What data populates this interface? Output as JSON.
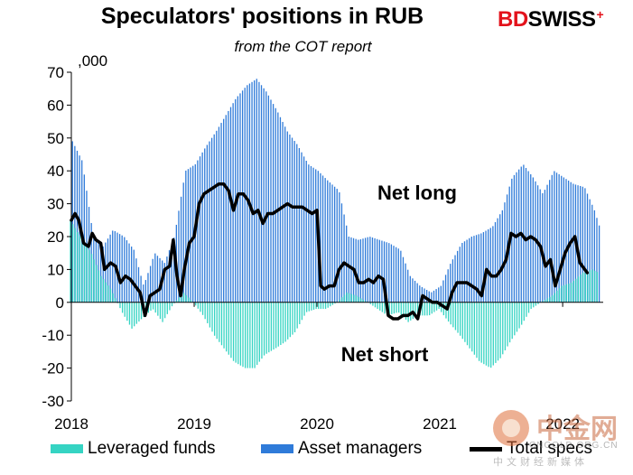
{
  "header": {
    "title": "Speculators' positions in RUB",
    "subtitle": "from the COT report",
    "brand_part1": "BD",
    "brand_part2": "SWISS",
    "unit": ",000"
  },
  "watermark": {
    "cn_name": "中金网",
    "url": "CNGOLD.ORG.CN",
    "sub": "中文财经新媒体"
  },
  "colors": {
    "leveraged_funds": "#35d4c3",
    "asset_managers": "#2f7bd9",
    "total_specs": "#000000",
    "brand_red": "#e3121b"
  },
  "chart_data": {
    "type": "bar",
    "title": "Speculators' positions in RUB",
    "subtitle": "from the COT report",
    "ylabel": ",000",
    "ylim": [
      -30,
      70
    ],
    "yticks": [
      70,
      60,
      50,
      40,
      30,
      20,
      10,
      0,
      -10,
      -20,
      -30
    ],
    "x_tick_labels": [
      "2018",
      "2019",
      "2020",
      "2021",
      "2022"
    ],
    "x_range": [
      2018.0,
      2022.33
    ],
    "grid": false,
    "legend_position": "bottom",
    "annotations": [
      "Net long",
      "Net short"
    ],
    "series": [
      {
        "name": "Leveraged funds",
        "type": "bar",
        "points": [
          [
            2018.0,
            25
          ],
          [
            2018.08,
            20
          ],
          [
            2018.17,
            15
          ],
          [
            2018.25,
            8
          ],
          [
            2018.33,
            4
          ],
          [
            2018.42,
            -3
          ],
          [
            2018.5,
            -8
          ],
          [
            2018.58,
            -5
          ],
          [
            2018.67,
            -2
          ],
          [
            2018.75,
            -6
          ],
          [
            2018.83,
            -1
          ],
          [
            2018.92,
            3
          ],
          [
            2019.0,
            0
          ],
          [
            2019.08,
            -4
          ],
          [
            2019.17,
            -10
          ],
          [
            2019.25,
            -14
          ],
          [
            2019.33,
            -18
          ],
          [
            2019.42,
            -20
          ],
          [
            2019.5,
            -20
          ],
          [
            2019.58,
            -16
          ],
          [
            2019.67,
            -14
          ],
          [
            2019.75,
            -12
          ],
          [
            2019.83,
            -9
          ],
          [
            2019.92,
            -3
          ],
          [
            2020.0,
            -2
          ],
          [
            2020.08,
            -2
          ],
          [
            2020.17,
            0
          ],
          [
            2020.25,
            3
          ],
          [
            2020.33,
            2
          ],
          [
            2020.42,
            0
          ],
          [
            2020.5,
            -2
          ],
          [
            2020.58,
            -4
          ],
          [
            2020.67,
            -3
          ],
          [
            2020.75,
            -6
          ],
          [
            2020.83,
            -4
          ],
          [
            2020.92,
            -4
          ],
          [
            2021.0,
            -2
          ],
          [
            2021.08,
            -6
          ],
          [
            2021.17,
            -10
          ],
          [
            2021.25,
            -14
          ],
          [
            2021.33,
            -18
          ],
          [
            2021.42,
            -20
          ],
          [
            2021.5,
            -17
          ],
          [
            2021.58,
            -12
          ],
          [
            2021.67,
            -7
          ],
          [
            2021.75,
            -2
          ],
          [
            2021.83,
            0
          ],
          [
            2021.92,
            2
          ],
          [
            2022.0,
            5
          ],
          [
            2022.08,
            6
          ],
          [
            2022.17,
            9
          ],
          [
            2022.25,
            10
          ],
          [
            2022.3,
            9
          ]
        ]
      },
      {
        "name": "Asset managers",
        "type": "bar",
        "points": [
          [
            2018.0,
            49
          ],
          [
            2018.08,
            43
          ],
          [
            2018.17,
            20
          ],
          [
            2018.25,
            17
          ],
          [
            2018.33,
            22
          ],
          [
            2018.42,
            20
          ],
          [
            2018.5,
            16
          ],
          [
            2018.58,
            5
          ],
          [
            2018.67,
            15
          ],
          [
            2018.75,
            12
          ],
          [
            2018.83,
            20
          ],
          [
            2018.92,
            40
          ],
          [
            2019.0,
            42
          ],
          [
            2019.08,
            47
          ],
          [
            2019.17,
            52
          ],
          [
            2019.25,
            57
          ],
          [
            2019.33,
            62
          ],
          [
            2019.42,
            66
          ],
          [
            2019.5,
            68
          ],
          [
            2019.58,
            64
          ],
          [
            2019.67,
            58
          ],
          [
            2019.75,
            52
          ],
          [
            2019.83,
            48
          ],
          [
            2019.92,
            42
          ],
          [
            2020.0,
            40
          ],
          [
            2020.08,
            37
          ],
          [
            2020.17,
            34
          ],
          [
            2020.25,
            20
          ],
          [
            2020.33,
            19
          ],
          [
            2020.42,
            20
          ],
          [
            2020.5,
            19
          ],
          [
            2020.58,
            18
          ],
          [
            2020.67,
            16
          ],
          [
            2020.75,
            8
          ],
          [
            2020.83,
            5
          ],
          [
            2020.92,
            3
          ],
          [
            2021.0,
            5
          ],
          [
            2021.08,
            12
          ],
          [
            2021.17,
            18
          ],
          [
            2021.25,
            20
          ],
          [
            2021.33,
            21
          ],
          [
            2021.42,
            23
          ],
          [
            2021.5,
            28
          ],
          [
            2021.58,
            38
          ],
          [
            2021.67,
            42
          ],
          [
            2021.75,
            38
          ],
          [
            2021.83,
            33
          ],
          [
            2021.92,
            40
          ],
          [
            2022.0,
            38
          ],
          [
            2022.08,
            36
          ],
          [
            2022.17,
            35
          ],
          [
            2022.25,
            28
          ],
          [
            2022.3,
            22
          ]
        ]
      },
      {
        "name": "Total specs",
        "type": "line",
        "points": [
          [
            2018.0,
            25
          ],
          [
            2018.03,
            27
          ],
          [
            2018.06,
            25
          ],
          [
            2018.1,
            18
          ],
          [
            2018.14,
            17
          ],
          [
            2018.17,
            21
          ],
          [
            2018.2,
            19
          ],
          [
            2018.24,
            18
          ],
          [
            2018.27,
            10
          ],
          [
            2018.32,
            12
          ],
          [
            2018.36,
            11
          ],
          [
            2018.4,
            6
          ],
          [
            2018.44,
            8
          ],
          [
            2018.48,
            7
          ],
          [
            2018.52,
            5
          ],
          [
            2018.56,
            3
          ],
          [
            2018.6,
            -4
          ],
          [
            2018.64,
            2
          ],
          [
            2018.68,
            3
          ],
          [
            2018.72,
            4
          ],
          [
            2018.76,
            10
          ],
          [
            2018.8,
            11
          ],
          [
            2018.83,
            19
          ],
          [
            2018.86,
            8
          ],
          [
            2018.89,
            2
          ],
          [
            2018.92,
            10
          ],
          [
            2018.96,
            18
          ],
          [
            2019.0,
            20
          ],
          [
            2019.04,
            30
          ],
          [
            2019.08,
            33
          ],
          [
            2019.12,
            34
          ],
          [
            2019.16,
            35
          ],
          [
            2019.2,
            36
          ],
          [
            2019.24,
            36
          ],
          [
            2019.28,
            34
          ],
          [
            2019.32,
            28
          ],
          [
            2019.36,
            33
          ],
          [
            2019.4,
            33
          ],
          [
            2019.44,
            31
          ],
          [
            2019.48,
            27
          ],
          [
            2019.52,
            28
          ],
          [
            2019.56,
            24
          ],
          [
            2019.6,
            27
          ],
          [
            2019.64,
            27
          ],
          [
            2019.68,
            28
          ],
          [
            2019.72,
            29
          ],
          [
            2019.76,
            30
          ],
          [
            2019.8,
            29
          ],
          [
            2019.84,
            29
          ],
          [
            2019.88,
            29
          ],
          [
            2019.92,
            28
          ],
          [
            2019.96,
            27
          ],
          [
            2020.0,
            28
          ],
          [
            2020.03,
            5
          ],
          [
            2020.06,
            4
          ],
          [
            2020.1,
            5
          ],
          [
            2020.14,
            5
          ],
          [
            2020.18,
            10
          ],
          [
            2020.22,
            12
          ],
          [
            2020.26,
            11
          ],
          [
            2020.3,
            10
          ],
          [
            2020.34,
            6
          ],
          [
            2020.38,
            6
          ],
          [
            2020.42,
            7
          ],
          [
            2020.46,
            6
          ],
          [
            2020.5,
            8
          ],
          [
            2020.54,
            7
          ],
          [
            2020.58,
            -4
          ],
          [
            2020.62,
            -5
          ],
          [
            2020.66,
            -5
          ],
          [
            2020.7,
            -4
          ],
          [
            2020.74,
            -4
          ],
          [
            2020.78,
            -3
          ],
          [
            2020.82,
            -5
          ],
          [
            2020.86,
            2
          ],
          [
            2020.9,
            1
          ],
          [
            2020.94,
            0
          ],
          [
            2020.98,
            0
          ],
          [
            2021.02,
            -1
          ],
          [
            2021.06,
            -2
          ],
          [
            2021.1,
            3
          ],
          [
            2021.14,
            6
          ],
          [
            2021.18,
            6
          ],
          [
            2021.22,
            6
          ],
          [
            2021.26,
            5
          ],
          [
            2021.3,
            4
          ],
          [
            2021.34,
            2
          ],
          [
            2021.38,
            10
          ],
          [
            2021.42,
            8
          ],
          [
            2021.46,
            8
          ],
          [
            2021.5,
            10
          ],
          [
            2021.54,
            13
          ],
          [
            2021.58,
            21
          ],
          [
            2021.62,
            20
          ],
          [
            2021.66,
            21
          ],
          [
            2021.7,
            19
          ],
          [
            2021.74,
            20
          ],
          [
            2021.78,
            19
          ],
          [
            2021.82,
            17
          ],
          [
            2021.86,
            11
          ],
          [
            2021.9,
            13
          ],
          [
            2021.94,
            5
          ],
          [
            2021.98,
            10
          ],
          [
            2022.02,
            15
          ],
          [
            2022.06,
            18
          ],
          [
            2022.1,
            20
          ],
          [
            2022.14,
            12
          ],
          [
            2022.2,
            9
          ]
        ]
      }
    ]
  }
}
